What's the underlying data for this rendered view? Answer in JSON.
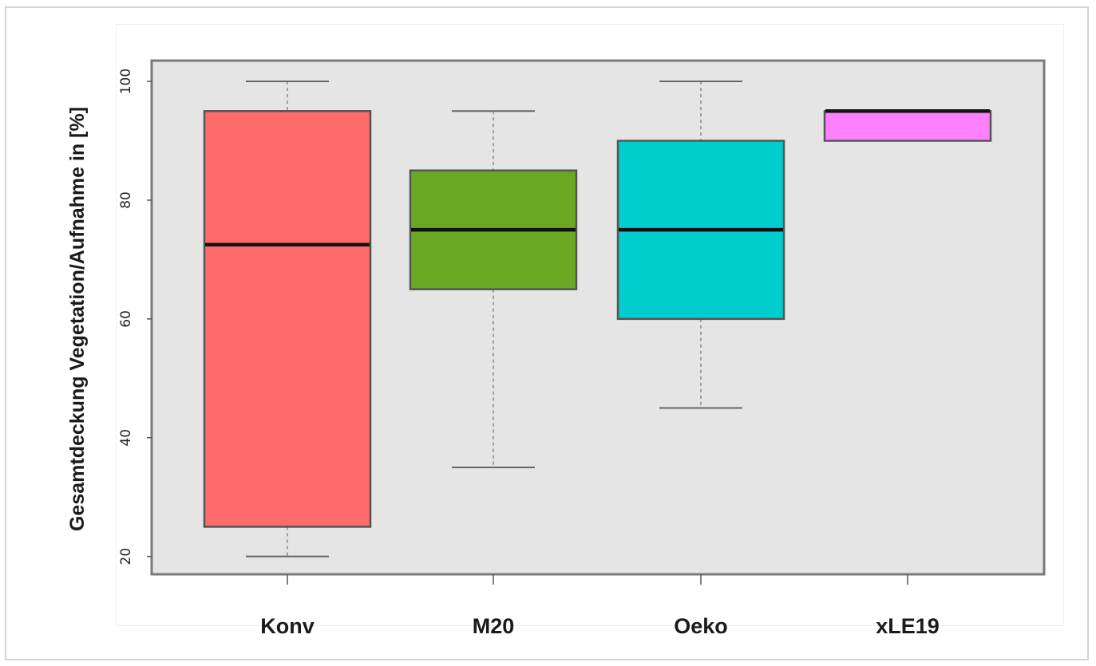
{
  "chart_data": {
    "type": "boxplot",
    "title": "",
    "xlabel": "",
    "ylabel": "Gesamtdeckung Vegetation/Aufnahme in [%]",
    "ylim": [
      17,
      103.5
    ],
    "yticks": [
      20,
      40,
      60,
      80,
      100
    ],
    "ytick_labels": [
      "20",
      "40",
      "60",
      "80",
      "100"
    ],
    "grid": false,
    "legend": "none",
    "categories": [
      "Konv",
      "M20",
      "Oeko",
      "xLE19"
    ],
    "boxes": [
      {
        "category": "Konv",
        "whisker_low": 20,
        "q1": 25,
        "median": 72.5,
        "q3": 95,
        "whisker_high": 100,
        "color": "#ff6b6b"
      },
      {
        "category": "M20",
        "whisker_low": 35,
        "q1": 65,
        "median": 75,
        "q3": 85,
        "whisker_high": 95,
        "color": "#6aa822"
      },
      {
        "category": "Oeko",
        "whisker_low": 45,
        "q1": 60,
        "median": 75,
        "q3": 90,
        "whisker_high": 100,
        "color": "#00cdcd"
      },
      {
        "category": "xLE19",
        "whisker_low": 90,
        "q1": 90,
        "median": 95,
        "q3": 95,
        "whisker_high": 95,
        "color": "#ff80ff"
      }
    ],
    "panel_background": "#e5e5e5"
  }
}
